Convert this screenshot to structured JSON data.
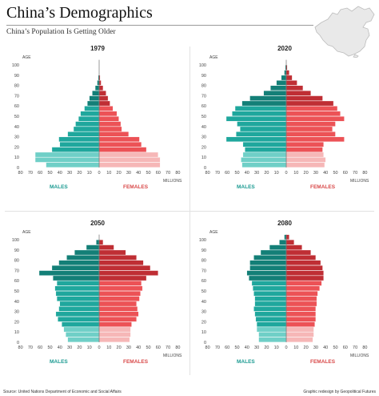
{
  "header": {
    "title": "China’s Demographics",
    "subtitle": "China’s Population Is Getting Older"
  },
  "footer": {
    "source": "Source: United Nations Department of Economic and Social Affairs",
    "credit": "Graphic redesign by Geopolitical Futures"
  },
  "icons": {
    "map": "china-map-icon"
  },
  "colors": {
    "male_dark": "#137f77",
    "male_mid": "#1fa79d",
    "male_light": "#6fcfc7",
    "female_dark": "#bf2e34",
    "female_mid": "#ec5256",
    "female_light": "#f6b7b7",
    "male_label": "#1a9a91",
    "female_label": "#d84848"
  },
  "labels": {
    "age": "AGE",
    "millions": "MILLIONS",
    "males": "MALES",
    "females": "FEMALES",
    "y_ticks": [
      "0",
      "10",
      "20",
      "30",
      "40",
      "50",
      "60",
      "70",
      "80",
      "90",
      "100"
    ],
    "x_ticks": [
      "80",
      "70",
      "60",
      "50",
      "40",
      "30",
      "20",
      "10",
      "0",
      "10",
      "20",
      "30",
      "40",
      "50",
      "60",
      "70",
      "80"
    ]
  },
  "chart_data": [
    {
      "type": "bar",
      "title": "1979",
      "xlabel": "MILLIONS",
      "ylabel": "AGE",
      "xlim": [
        -80,
        80
      ],
      "ylim": [
        0,
        100
      ],
      "age_groups": [
        "0-4",
        "5-9",
        "10-14",
        "15-19",
        "20-24",
        "25-29",
        "30-34",
        "35-39",
        "40-44",
        "45-49",
        "50-54",
        "55-59",
        "60-64",
        "65-69",
        "70-74",
        "75-79",
        "80-84",
        "85-89"
      ],
      "series": [
        {
          "name": "MALES",
          "values": [
            54,
            65,
            65,
            48,
            40,
            41,
            32,
            26,
            24,
            21,
            19,
            15,
            12,
            10,
            7,
            4,
            2,
            1
          ]
        },
        {
          "name": "FEMALES",
          "values": [
            62,
            62,
            60,
            48,
            43,
            41,
            30,
            23,
            22,
            20,
            18,
            14,
            11,
            9,
            7,
            4,
            2,
            1
          ]
        }
      ]
    },
    {
      "type": "bar",
      "title": "2020",
      "xlabel": "MILLIONS",
      "ylabel": "AGE",
      "xlim": [
        -80,
        80
      ],
      "ylim": [
        0,
        100
      ],
      "age_groups": [
        "0-4",
        "5-9",
        "10-14",
        "15-19",
        "20-24",
        "25-29",
        "30-34",
        "35-39",
        "40-44",
        "45-49",
        "50-54",
        "55-59",
        "60-64",
        "65-69",
        "70-74",
        "75-79",
        "80-84",
        "85-89",
        "90-94",
        "95-99"
      ],
      "series": [
        {
          "name": "MALES",
          "values": [
            45,
            46,
            44,
            42,
            44,
            61,
            51,
            47,
            50,
            61,
            55,
            52,
            45,
            37,
            23,
            16,
            10,
            5,
            2,
            1
          ]
        },
        {
          "name": "FEMALES",
          "values": [
            39,
            40,
            38,
            37,
            38,
            59,
            50,
            47,
            50,
            59,
            55,
            52,
            48,
            37,
            25,
            17,
            11,
            6,
            3,
            1
          ]
        }
      ]
    },
    {
      "type": "bar",
      "title": "2050",
      "xlabel": "MILLIONS",
      "ylabel": "AGE",
      "xlim": [
        -80,
        80
      ],
      "ylim": [
        0,
        100
      ],
      "age_groups": [
        "0-4",
        "5-9",
        "10-14",
        "15-19",
        "20-24",
        "25-29",
        "30-34",
        "35-39",
        "40-44",
        "45-49",
        "50-54",
        "55-59",
        "60-64",
        "65-69",
        "70-74",
        "75-79",
        "80-84",
        "85-89",
        "90-94",
        "95-99"
      ],
      "series": [
        {
          "name": "MALES",
          "values": [
            32,
            34,
            36,
            38,
            42,
            44,
            41,
            40,
            43,
            44,
            45,
            43,
            47,
            61,
            48,
            41,
            33,
            25,
            13,
            3
          ]
        },
        {
          "name": "FEMALES",
          "values": [
            31,
            32,
            32,
            33,
            38,
            40,
            39,
            38,
            41,
            42,
            44,
            43,
            48,
            60,
            52,
            45,
            38,
            27,
            15,
            4
          ]
        }
      ]
    },
    {
      "type": "bar",
      "title": "2080",
      "xlabel": "MILLIONS",
      "ylabel": "AGE",
      "xlim": [
        -80,
        80
      ],
      "ylim": [
        0,
        100
      ],
      "age_groups": [
        "0-4",
        "5-9",
        "10-14",
        "15-19",
        "20-24",
        "25-29",
        "30-34",
        "35-39",
        "40-44",
        "45-49",
        "50-54",
        "55-59",
        "60-64",
        "65-69",
        "70-74",
        "75-79",
        "80-84",
        "85-89",
        "90-94",
        "95-99",
        "100-104"
      ],
      "series": [
        {
          "name": "MALES",
          "values": [
            28,
            28,
            30,
            30,
            31,
            32,
            33,
            32,
            32,
            33,
            34,
            35,
            38,
            40,
            37,
            37,
            33,
            26,
            17,
            7,
            2
          ]
        },
        {
          "name": "FEMALES",
          "values": [
            27,
            28,
            28,
            29,
            30,
            30,
            30,
            31,
            31,
            32,
            34,
            36,
            38,
            38,
            37,
            35,
            30,
            25,
            16,
            8,
            3
          ]
        }
      ]
    }
  ]
}
